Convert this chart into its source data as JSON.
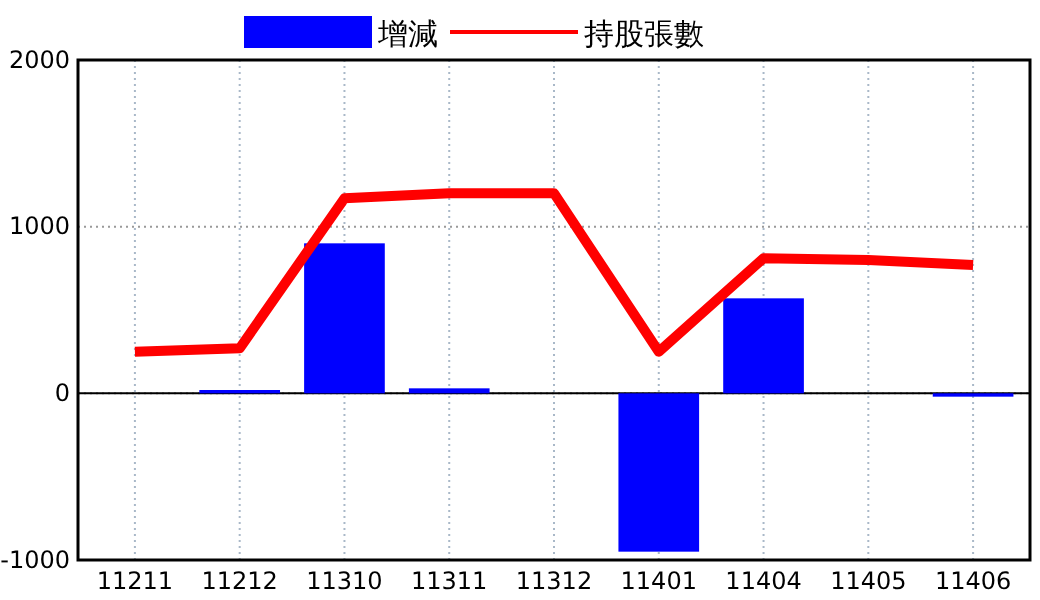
{
  "chart_data": {
    "type": "bar",
    "categories": [
      "11211",
      "11212",
      "11310",
      "11311",
      "11312",
      "11401",
      "11404",
      "11405",
      "11406"
    ],
    "series": [
      {
        "name": "增減",
        "color": "#0000ff",
        "values": [
          0,
          20,
          900,
          30,
          0,
          -950,
          570,
          0,
          -20
        ]
      },
      {
        "name": "持股張數",
        "type": "line",
        "color": "#ff0000",
        "values": [
          250,
          270,
          1170,
          1200,
          1200,
          250,
          810,
          800,
          770
        ]
      }
    ],
    "ylim": [
      -1000,
      2000
    ],
    "yticks": [
      -1000,
      0,
      1000,
      2000
    ],
    "grid": true,
    "legend": "top"
  }
}
